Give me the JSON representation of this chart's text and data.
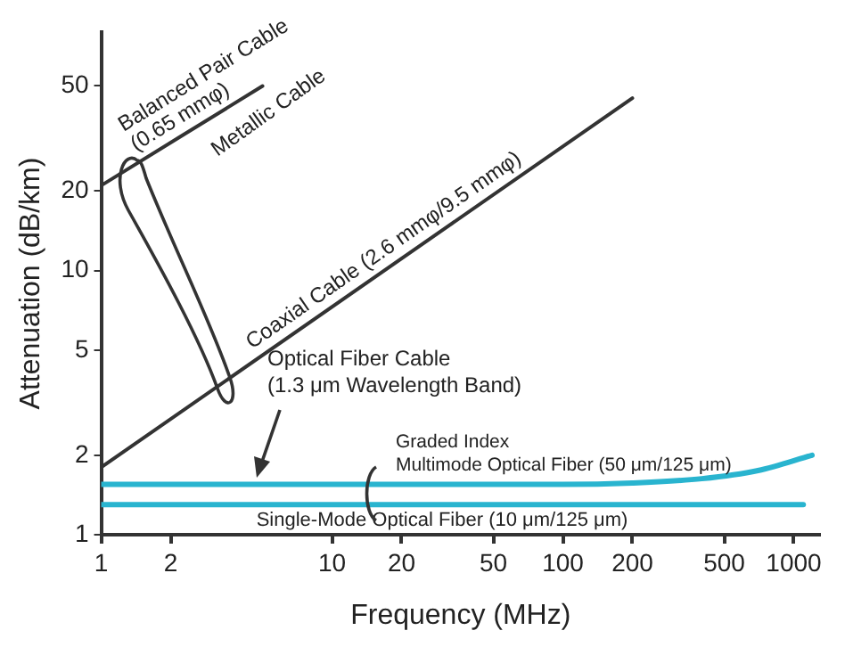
{
  "chart_data": {
    "type": "line",
    "xlabel": "Frequency (MHz)",
    "ylabel": "Attenuation (dB/km)",
    "log": "xy",
    "xlim": [
      1,
      1300
    ],
    "xticks": [
      1,
      2,
      10,
      20,
      50,
      100,
      200,
      500,
      1000
    ],
    "ylim": [
      1,
      80
    ],
    "yticks": [
      1,
      2,
      5,
      10,
      20,
      50
    ],
    "grid": false,
    "marker": "none",
    "line_style": "solid",
    "series": [
      {
        "name": "Balanced Pair Cable\n(0.65 mmφ)",
        "color": "#333333",
        "x": [
          1,
          5
        ],
        "values": [
          21,
          50
        ]
      },
      {
        "name": "Coaxial Cable (2.6 mmφ/9.5 mmφ)",
        "color": "#333333",
        "x": [
          1,
          200
        ],
        "values": [
          1.8,
          45
        ]
      },
      {
        "name": "Graded Index\nMultimode Optical Fiber (50 μm/125 μm)",
        "color": "#29b4cf",
        "x": [
          1,
          100,
          200,
          400,
          700,
          1200
        ],
        "values": [
          1.55,
          1.55,
          1.57,
          1.63,
          1.75,
          2.0
        ]
      },
      {
        "name": "Single-Mode Optical Fiber (10 μm/125 μm)",
        "color": "#29b4cf",
        "x": [
          1,
          1100
        ],
        "values": [
          1.3,
          1.3
        ]
      }
    ],
    "annotations": [
      "Metallic Cable",
      "Optical Fiber Cable\n(1.3 μm Wavelength Band)"
    ]
  }
}
